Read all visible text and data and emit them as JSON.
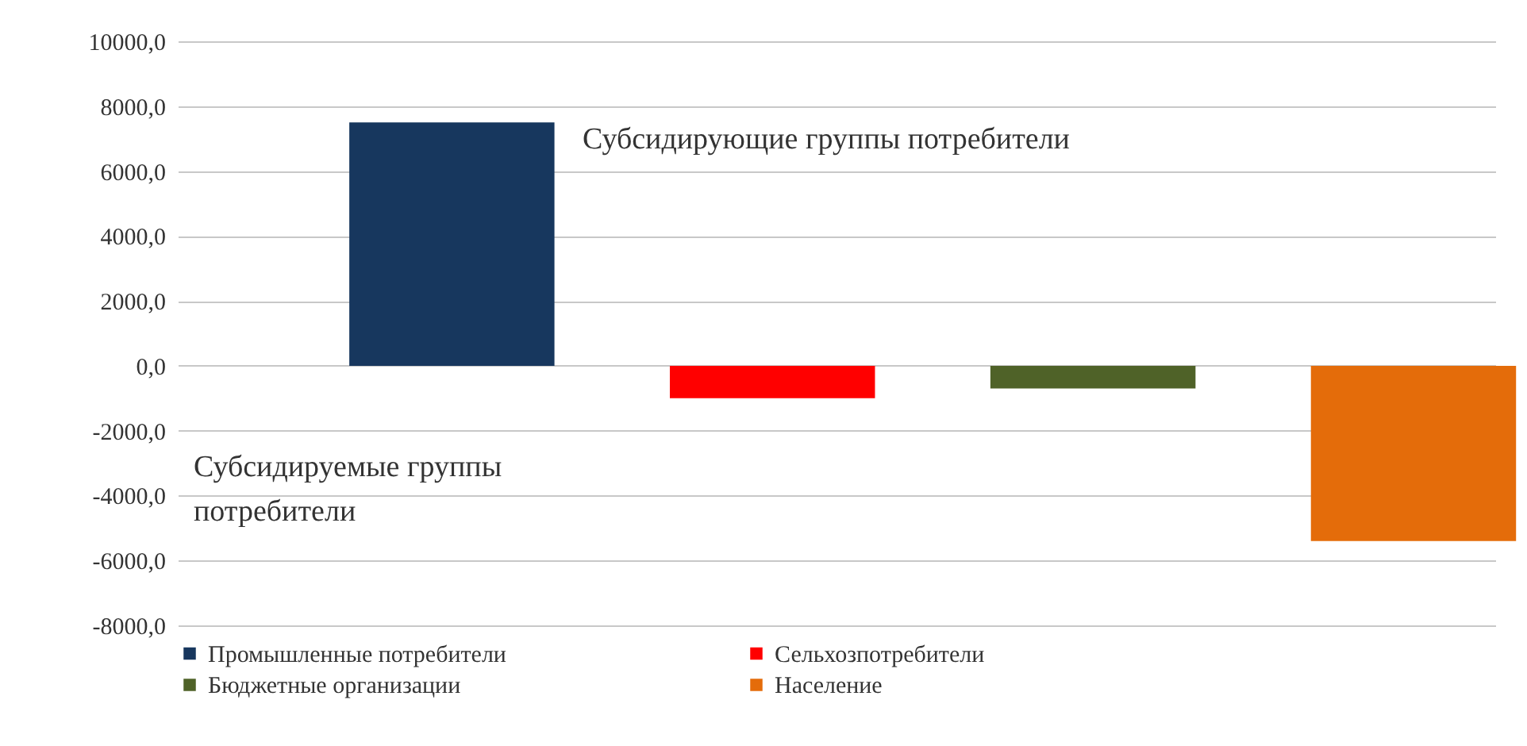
{
  "chart_data": {
    "type": "bar",
    "categories": [
      null
    ],
    "series": [
      {
        "name": "Промышленные потребители",
        "color": "#17375e",
        "values": [
          7500
        ]
      },
      {
        "name": "Сельхозпотребители",
        "color": "#ff0000",
        "values": [
          -1000
        ]
      },
      {
        "name": "Бюджетные организации",
        "color": "#4f6228",
        "values": [
          -700
        ]
      },
      {
        "name": "Население",
        "color": "#e46c0a",
        "values": [
          -5400
        ]
      }
    ],
    "ylim": [
      -8000,
      10000
    ],
    "yticks": [
      {
        "value": -8000,
        "label": "-8000,0"
      },
      {
        "value": -6000,
        "label": "-6000,0"
      },
      {
        "value": -4000,
        "label": "-4000,0"
      },
      {
        "value": -2000,
        "label": "-2000,0"
      },
      {
        "value": 0,
        "label": "0,0"
      },
      {
        "value": 2000,
        "label": "2000,0"
      },
      {
        "value": 4000,
        "label": "4000,0"
      },
      {
        "value": 6000,
        "label": "6000,0"
      },
      {
        "value": 8000,
        "label": "8000,0"
      },
      {
        "value": 10000,
        "label": "10000,0"
      }
    ],
    "annotations": [
      "Субсидирующие группы потребители",
      "Субсидируемые группы потребители"
    ],
    "grid": "y",
    "legend": "bottom"
  }
}
